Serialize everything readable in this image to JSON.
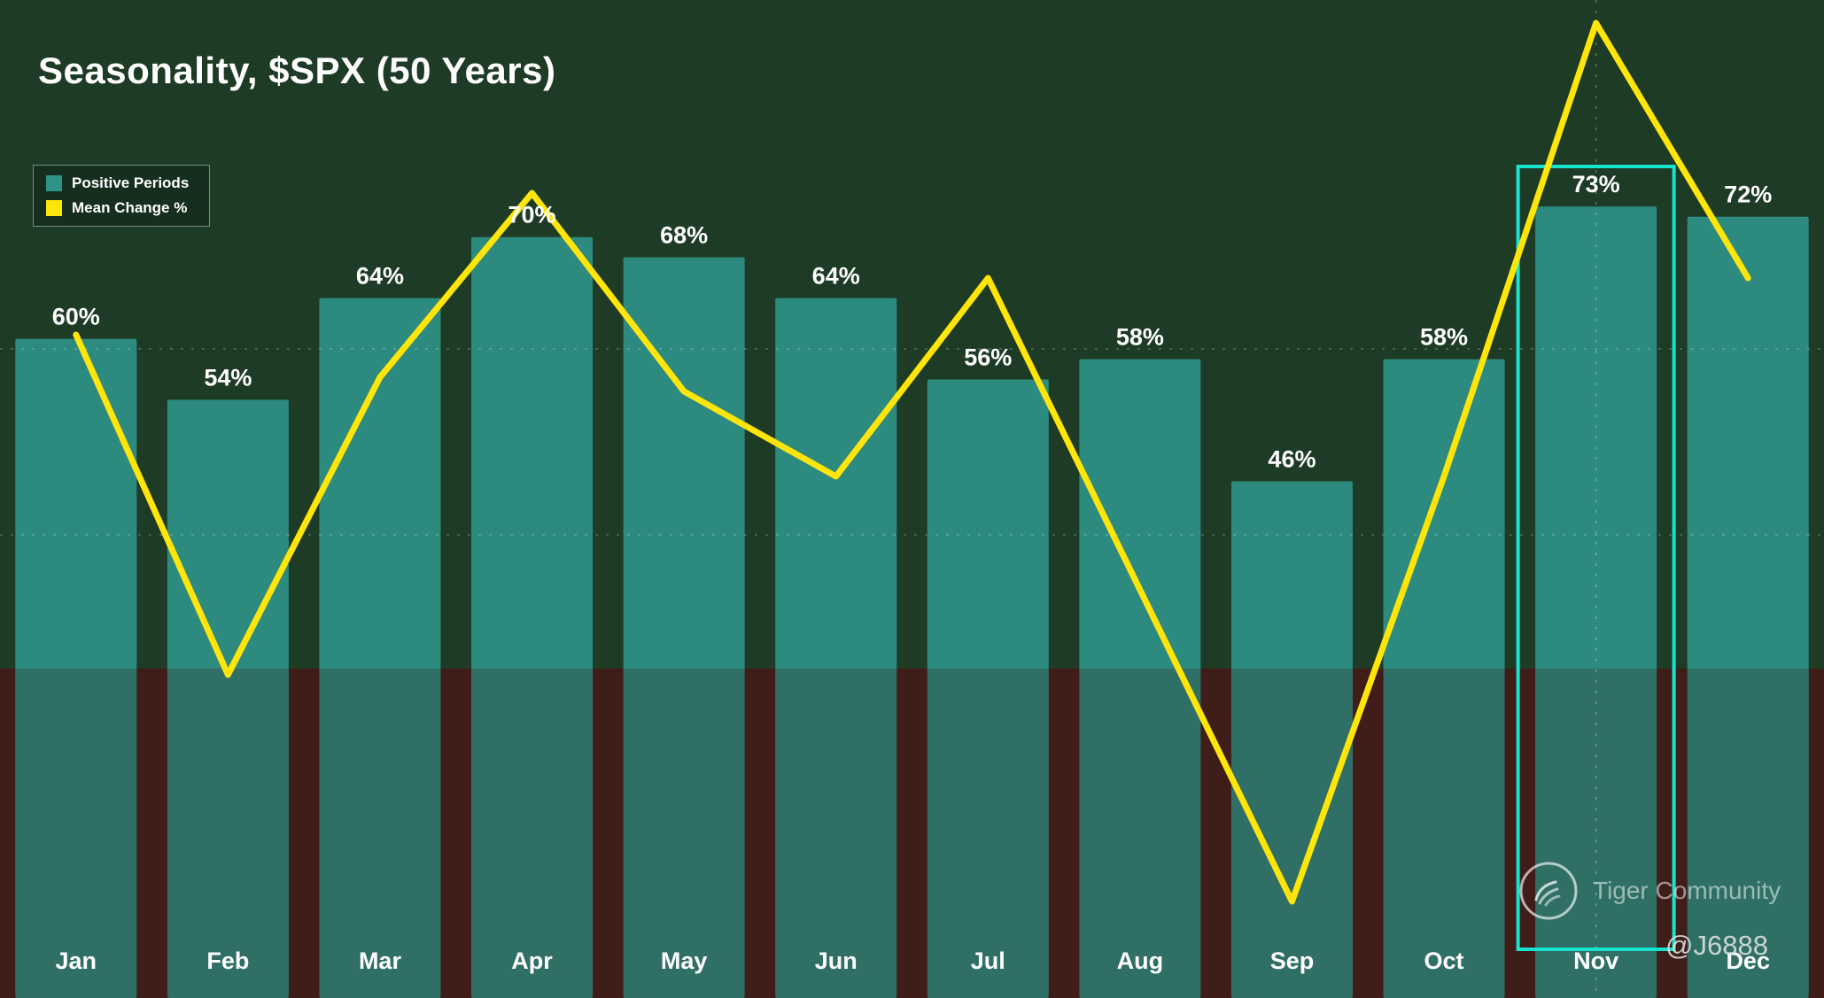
{
  "title": "Seasonality, $SPX (50 Years)",
  "legend": {
    "positive_label": "Positive Periods",
    "mean_label": "Mean Change %"
  },
  "watermark": {
    "community": "Tiger Community",
    "handle": "@J6888"
  },
  "colors": {
    "background": "#1e3b26",
    "band": "#45211d",
    "bar": "#2f9488",
    "line": "#ffe50a",
    "highlight": "#17e4cf",
    "label": "#ffffff"
  },
  "chart_data": {
    "type": "bar+line",
    "title": "Seasonality, $SPX (50 Years)",
    "categories": [
      "Jan",
      "Feb",
      "Mar",
      "Apr",
      "May",
      "Jun",
      "Jul",
      "Aug",
      "Sep",
      "Oct",
      "Nov",
      "Dec"
    ],
    "series": [
      {
        "name": "Positive Periods",
        "type": "bar",
        "unit": "%",
        "values": [
          60,
          54,
          64,
          70,
          68,
          64,
          56,
          58,
          46,
          58,
          73,
          72
        ]
      },
      {
        "name": "Mean Change %",
        "type": "line",
        "unit": "%",
        "values": [
          1.0,
          -0.2,
          0.85,
          1.5,
          0.8,
          0.5,
          1.2,
          0.1,
          -1.0,
          0.5,
          2.1,
          1.2
        ]
      }
    ],
    "bar_ylim": [
      0,
      78
    ],
    "line_ylim": [
      -1.35,
      2.3
    ],
    "highlight_month": "Nov",
    "legend_position": "top-left",
    "grid": "dashed horizontal + dashed vertical at Nov"
  }
}
